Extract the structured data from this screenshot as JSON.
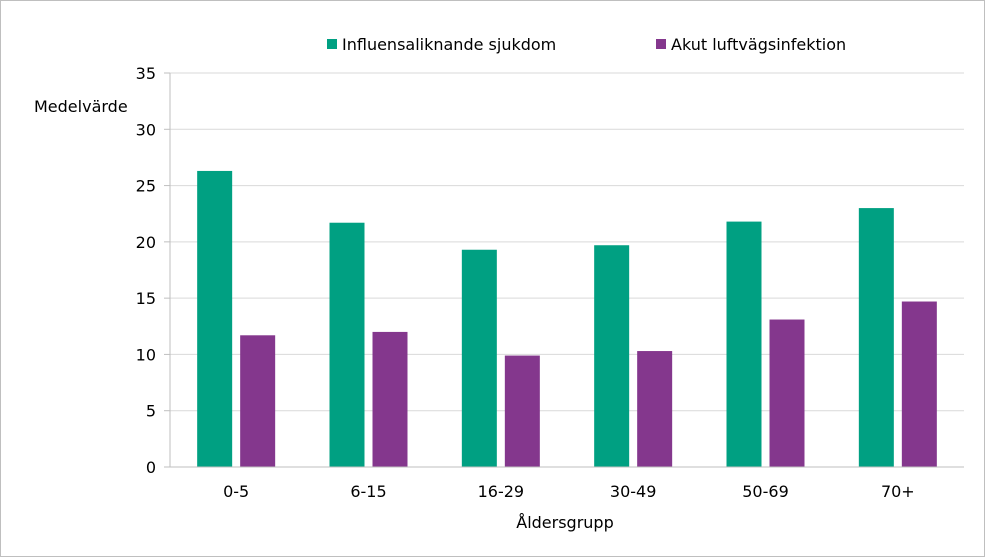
{
  "chart_data": {
    "type": "bar",
    "title": "",
    "xlabel": "Åldersgrupp",
    "ylabel": "Medelvärde",
    "categories": [
      "0-5",
      "6-15",
      "16-29",
      "30-49",
      "50-69",
      "70+"
    ],
    "series": [
      {
        "name": "Influensaliknande sjukdom",
        "color": "#00A082",
        "values": [
          26.3,
          21.7,
          19.3,
          19.7,
          21.8,
          23.0
        ]
      },
      {
        "name": "Akut luftvägsinfektion",
        "color": "#84378D",
        "values": [
          11.7,
          12.0,
          9.9,
          10.3,
          13.1,
          14.7
        ]
      }
    ],
    "ylim": [
      0,
      35
    ],
    "yticks": [
      0,
      5,
      10,
      15,
      20,
      25,
      30,
      35
    ],
    "grid": true,
    "legend_position": "top"
  }
}
